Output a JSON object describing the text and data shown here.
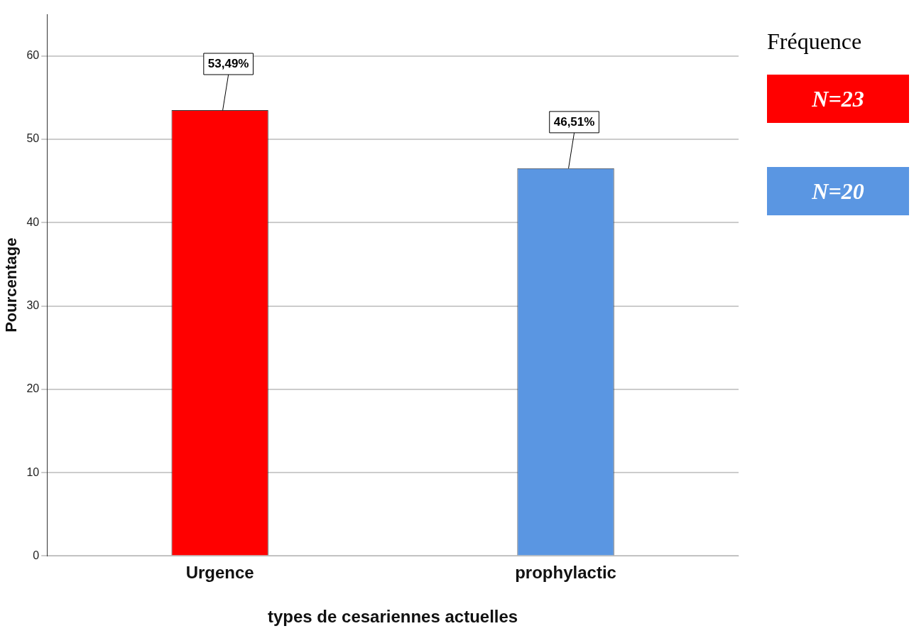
{
  "chart_data": {
    "type": "bar",
    "xlabel": "types de cesariennes actuelles",
    "ylabel": "Pourcentage",
    "legend_title": "Fréquence",
    "legend": "right",
    "categories": [
      "Urgence",
      "prophylactic"
    ],
    "series": [
      {
        "name": "N=23",
        "color": "#ff0000",
        "values": [
          53.49,
          null
        ],
        "value_labels": [
          "53,49%",
          null
        ]
      },
      {
        "name": "N=20",
        "color": "#5a96e2",
        "values": [
          null,
          46.51
        ],
        "value_labels": [
          null,
          "46,51%"
        ]
      }
    ],
    "ylim": [
      0,
      65
    ],
    "yticks": [
      0,
      10,
      20,
      30,
      40,
      50,
      60
    ],
    "grid": "y"
  }
}
